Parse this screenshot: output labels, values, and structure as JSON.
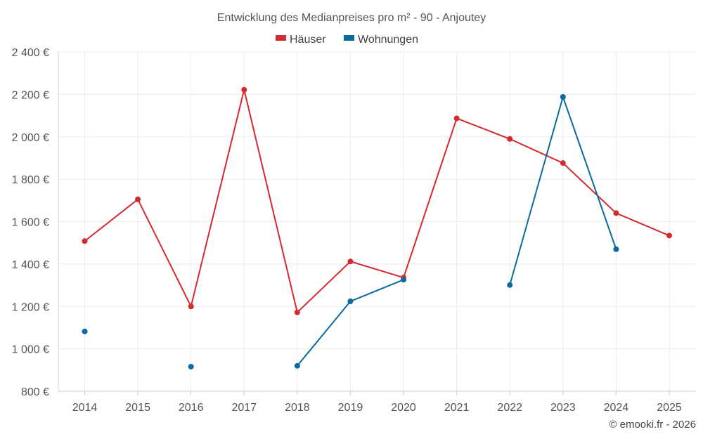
{
  "chart_data": {
    "type": "line",
    "title": "Entwicklung des Medianpreises pro m² - 90 - Anjoutey",
    "categories": [
      "2014",
      "2015",
      "2016",
      "2017",
      "2018",
      "2019",
      "2020",
      "2021",
      "2022",
      "2023",
      "2024",
      "2025"
    ],
    "y_ticks": [
      800,
      1000,
      1200,
      1400,
      1600,
      1800,
      2000,
      2200,
      2400
    ],
    "y_tick_labels": [
      "800 €",
      "1 000 €",
      "1 200 €",
      "1 400 €",
      "1 600 €",
      "1 800 €",
      "2 000 €",
      "2 200 €",
      "2 400 €"
    ],
    "ylim": [
      800,
      2400
    ],
    "grid": true,
    "legend_position": "top-center",
    "series": [
      {
        "name": "Häuser",
        "color": "#d32a2f",
        "values": [
          1508,
          1705,
          1200,
          2222,
          1172,
          1412,
          1336,
          2087,
          1990,
          1876,
          1640,
          1534
        ]
      },
      {
        "name": "Wohnungen",
        "color": "#0b6aa0",
        "values": [
          1082,
          null,
          916,
          null,
          920,
          1224,
          1326,
          null,
          1301,
          2188,
          1470,
          null
        ]
      }
    ]
  },
  "credit": "© emooki.fr - 2026"
}
